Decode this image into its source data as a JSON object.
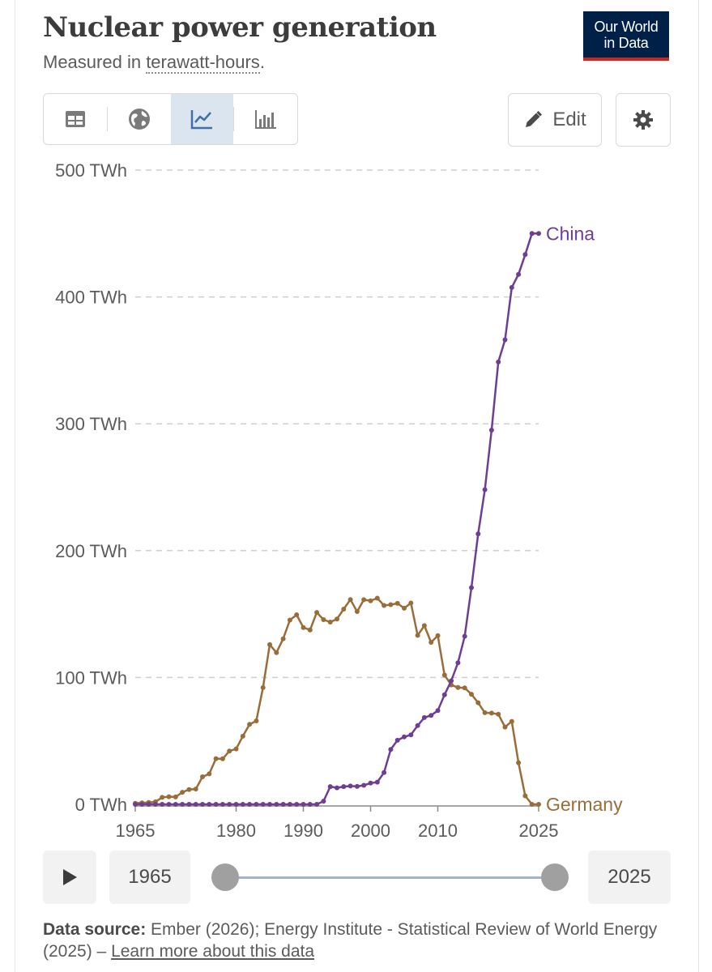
{
  "header": {
    "title": "Nuclear power generation",
    "subtitle_prefix": "Measured in ",
    "subtitle_unit": "terawatt-hours",
    "subtitle_suffix": ".",
    "logo_line1": "Our World",
    "logo_line2": "in Data"
  },
  "toolbar": {
    "tabs": [
      {
        "icon": "table-icon",
        "active": false
      },
      {
        "icon": "globe-icon",
        "active": false
      },
      {
        "icon": "line-chart-icon",
        "active": true
      },
      {
        "icon": "bar-chart-icon",
        "active": false
      }
    ],
    "edit_label": "Edit",
    "settings_icon": "gear-icon"
  },
  "colors": {
    "china": "#6d3e91",
    "germany": "#996d39",
    "grid": "#cfcfcf",
    "axis_text": "#5b5b5b"
  },
  "chart_data": {
    "type": "line",
    "title": "Nuclear power generation",
    "subtitle": "Measured in terawatt-hours.",
    "ylim": [
      0,
      500
    ],
    "yticks": [
      0,
      100,
      200,
      300,
      400,
      500
    ],
    "ytick_labels": [
      "0 TWh",
      "100 TWh",
      "200 TWh",
      "300 TWh",
      "400 TWh",
      "500 TWh"
    ],
    "xlim": [
      1965,
      2025
    ],
    "xticks": [
      1965,
      1980,
      1990,
      2000,
      2010,
      2025
    ],
    "xtick_labels": [
      "1965",
      "1980",
      "1990",
      "2000",
      "2010",
      "2025"
    ],
    "grid": "horizontal dashed",
    "legend": "line-end labels on right",
    "x": [
      1965,
      1966,
      1967,
      1968,
      1969,
      1970,
      1971,
      1972,
      1973,
      1974,
      1975,
      1976,
      1977,
      1978,
      1979,
      1980,
      1981,
      1982,
      1983,
      1984,
      1985,
      1986,
      1987,
      1988,
      1989,
      1990,
      1991,
      1992,
      1993,
      1994,
      1995,
      1996,
      1997,
      1998,
      1999,
      2000,
      2001,
      2002,
      2003,
      2004,
      2005,
      2006,
      2007,
      2008,
      2009,
      2010,
      2011,
      2012,
      2013,
      2014,
      2015,
      2016,
      2017,
      2018,
      2019,
      2020,
      2021,
      2022,
      2023,
      2024,
      2025
    ],
    "series": [
      {
        "name": "China",
        "values": [
          0,
          0,
          0,
          0,
          0,
          0,
          0,
          0,
          0,
          0,
          0,
          0,
          0,
          0,
          0,
          0,
          0,
          0,
          0,
          0,
          0,
          0,
          0,
          0,
          0,
          0,
          0,
          0,
          2.5,
          14,
          13,
          14,
          14.4,
          14.1,
          15,
          16.7,
          17.5,
          25.1,
          43.3,
          50.5,
          53.1,
          54.8,
          62.1,
          68.4,
          70.1,
          73.9,
          86.4,
          97.4,
          111.6,
          132.5,
          170.8,
          213.2,
          248.1,
          295,
          348.7,
          366.2,
          407.5,
          417.8,
          433.4,
          450,
          450
        ]
      },
      {
        "name": "Germany",
        "values": [
          0.8,
          1.2,
          1.5,
          2.0,
          5.5,
          6.0,
          5.8,
          9.5,
          11.7,
          12.1,
          21.7,
          24.0,
          36.0,
          35.9,
          42.0,
          43.7,
          53.7,
          63.1,
          65.8,
          92.0,
          125.9,
          119.6,
          130.5,
          145.3,
          149.4,
          139.4,
          137.5,
          151.3,
          145.6,
          143.7,
          146.1,
          153.9,
          161.4,
          152.0,
          161.3,
          160.5,
          162.5,
          156.8,
          157.4,
          158.4,
          154.6,
          158.7,
          133.2,
          140.9,
          127.7,
          133.0,
          101.9,
          94.1,
          92.1,
          91.8,
          86.8,
          80.1,
          72.2,
          71.9,
          71.1,
          60.9,
          65.4,
          32.8,
          6.7,
          0,
          0
        ]
      }
    ]
  },
  "timeline": {
    "play_icon": "play-icon",
    "start_year": "1965",
    "end_year": "2025"
  },
  "footer": {
    "source_label": "Data source:",
    "source_text": " Ember (2026); Energy Institute - Statistical Review of World Energy (2025) – ",
    "learn_more": "Learn more about this data"
  }
}
